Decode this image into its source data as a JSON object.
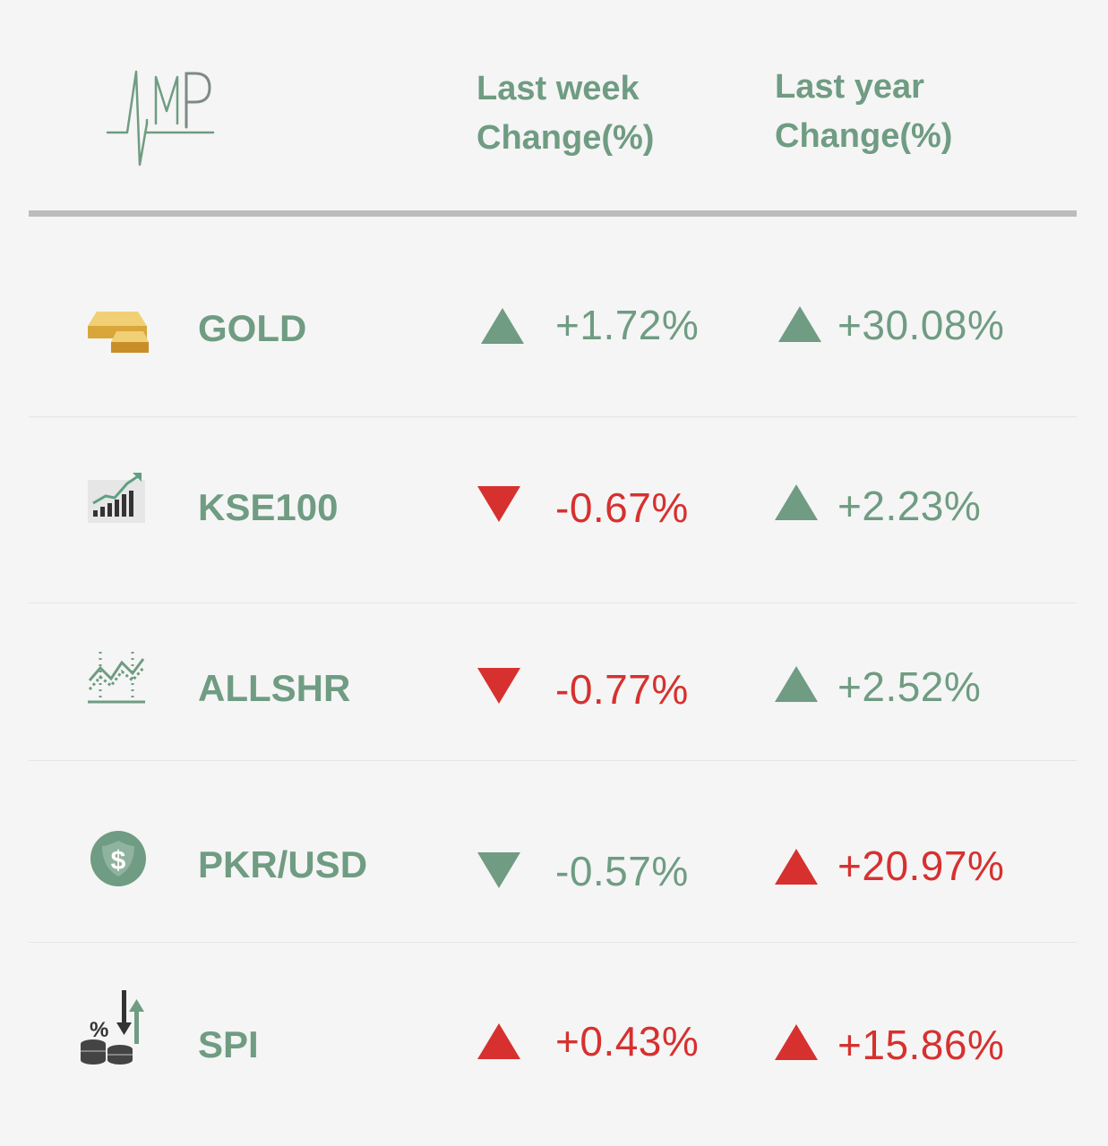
{
  "header": {
    "logo_text": "MP",
    "week_line1": "Last week",
    "week_line2": "Change(%)",
    "year_line1": "Last year",
    "year_line2": "Change(%)"
  },
  "colors": {
    "green": "#6f9c82",
    "red": "#d6312f",
    "divider": "#bcbcbc"
  },
  "rows": [
    {
      "name": "GOLD",
      "icon": "gold-bar-icon",
      "week": {
        "value": "+1.72%",
        "direction": "up",
        "color": "green"
      },
      "year": {
        "value": "+30.08%",
        "direction": "up",
        "color": "green"
      }
    },
    {
      "name": "KSE100",
      "icon": "rising-bar-chart-icon",
      "week": {
        "value": "-0.67%",
        "direction": "down",
        "color": "red"
      },
      "year": {
        "value": "+2.23%",
        "direction": "up",
        "color": "green"
      }
    },
    {
      "name": "ALLSHR",
      "icon": "line-chart-icon",
      "week": {
        "value": "-0.77%",
        "direction": "down",
        "color": "red"
      },
      "year": {
        "value": "+2.52%",
        "direction": "up",
        "color": "green"
      }
    },
    {
      "name": "PKR/USD",
      "icon": "dollar-coin-icon",
      "week": {
        "value": "-0.57%",
        "direction": "down",
        "color": "green"
      },
      "year": {
        "value": "+20.97%",
        "direction": "up",
        "color": "red"
      }
    },
    {
      "name": "SPI",
      "icon": "coins-percent-icon",
      "week": {
        "value": "+0.43%",
        "direction": "up",
        "color": "red"
      },
      "year": {
        "value": "+15.86%",
        "direction": "up",
        "color": "red"
      }
    }
  ]
}
